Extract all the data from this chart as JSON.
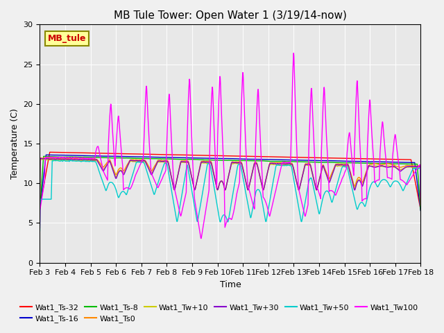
{
  "title": "MB Tule Tower: Open Water 1 (3/19/14-now)",
  "xlabel": "Time",
  "ylabel": "Temperature (C)",
  "ylim": [
    0,
    30
  ],
  "xlim_days": [
    3,
    18
  ],
  "x_tick_labels": [
    "Feb 3",
    "Feb 4",
    "Feb 5",
    "Feb 6",
    "Feb 7",
    "Feb 8",
    "Feb 9",
    "Feb 10",
    "Feb 11",
    "Feb 12",
    "Feb 13",
    "Feb 14",
    "Feb 15",
    "Feb 16",
    "Feb 17",
    "Feb 18"
  ],
  "legend_entries": [
    {
      "label": "Wat1_Ts-32",
      "color": "#ff0000"
    },
    {
      "label": "Wat1_Ts-16",
      "color": "#0000cc"
    },
    {
      "label": "Wat1_Ts-8",
      "color": "#00bb00"
    },
    {
      "label": "Wat1_Ts0",
      "color": "#ff8800"
    },
    {
      "label": "Wat1_Tw+10",
      "color": "#cccc00"
    },
    {
      "label": "Wat1_Tw+30",
      "color": "#8800cc"
    },
    {
      "label": "Wat1_Tw+50",
      "color": "#00cccc"
    },
    {
      "label": "Wat1_Tw100",
      "color": "#ff00ff"
    }
  ],
  "inset_label": "MB_tule",
  "inset_color": "#cc0000",
  "inset_bg": "#ffff99",
  "inset_border": "#888800",
  "plot_bg": "#e8e8e8",
  "fig_bg": "#f0f0f0",
  "title_fontsize": 11,
  "tick_fontsize": 8,
  "label_fontsize": 9,
  "legend_fontsize": 8,
  "spike_events": [
    {
      "day": 5.3,
      "peak": 15.2,
      "dip": 9.5
    },
    {
      "day": 5.8,
      "peak": 21.5,
      "dip": 8.5
    },
    {
      "day": 6.1,
      "peak": 19.7,
      "dip": 9.0
    },
    {
      "day": 7.2,
      "peak": 24.1,
      "dip": 9.0
    },
    {
      "day": 8.1,
      "peak": 23.3,
      "dip": 5.0
    },
    {
      "day": 8.9,
      "peak": 25.8,
      "dip": 1.8
    },
    {
      "day": 9.8,
      "peak": 24.6,
      "dip": 2.2
    },
    {
      "day": 10.1,
      "peak": 25.9,
      "dip": 5.0
    },
    {
      "day": 11.0,
      "peak": 26.4,
      "dip": 6.0
    },
    {
      "day": 11.6,
      "peak": 24.0,
      "dip": 5.0
    },
    {
      "day": 13.0,
      "peak": 29.3,
      "dip": 5.0
    },
    {
      "day": 13.7,
      "peak": 24.0,
      "dip": 6.5
    },
    {
      "day": 14.2,
      "peak": 24.0,
      "dip": 8.0
    },
    {
      "day": 15.2,
      "peak": 17.5,
      "dip": 7.0
    },
    {
      "day": 15.5,
      "peak": 25.0,
      "dip": 7.5
    },
    {
      "day": 16.0,
      "peak": 22.0,
      "dip": 10.0
    },
    {
      "day": 16.5,
      "peak": 18.8,
      "dip": 10.0
    },
    {
      "day": 17.0,
      "peak": 17.0,
      "dip": 9.5
    }
  ]
}
